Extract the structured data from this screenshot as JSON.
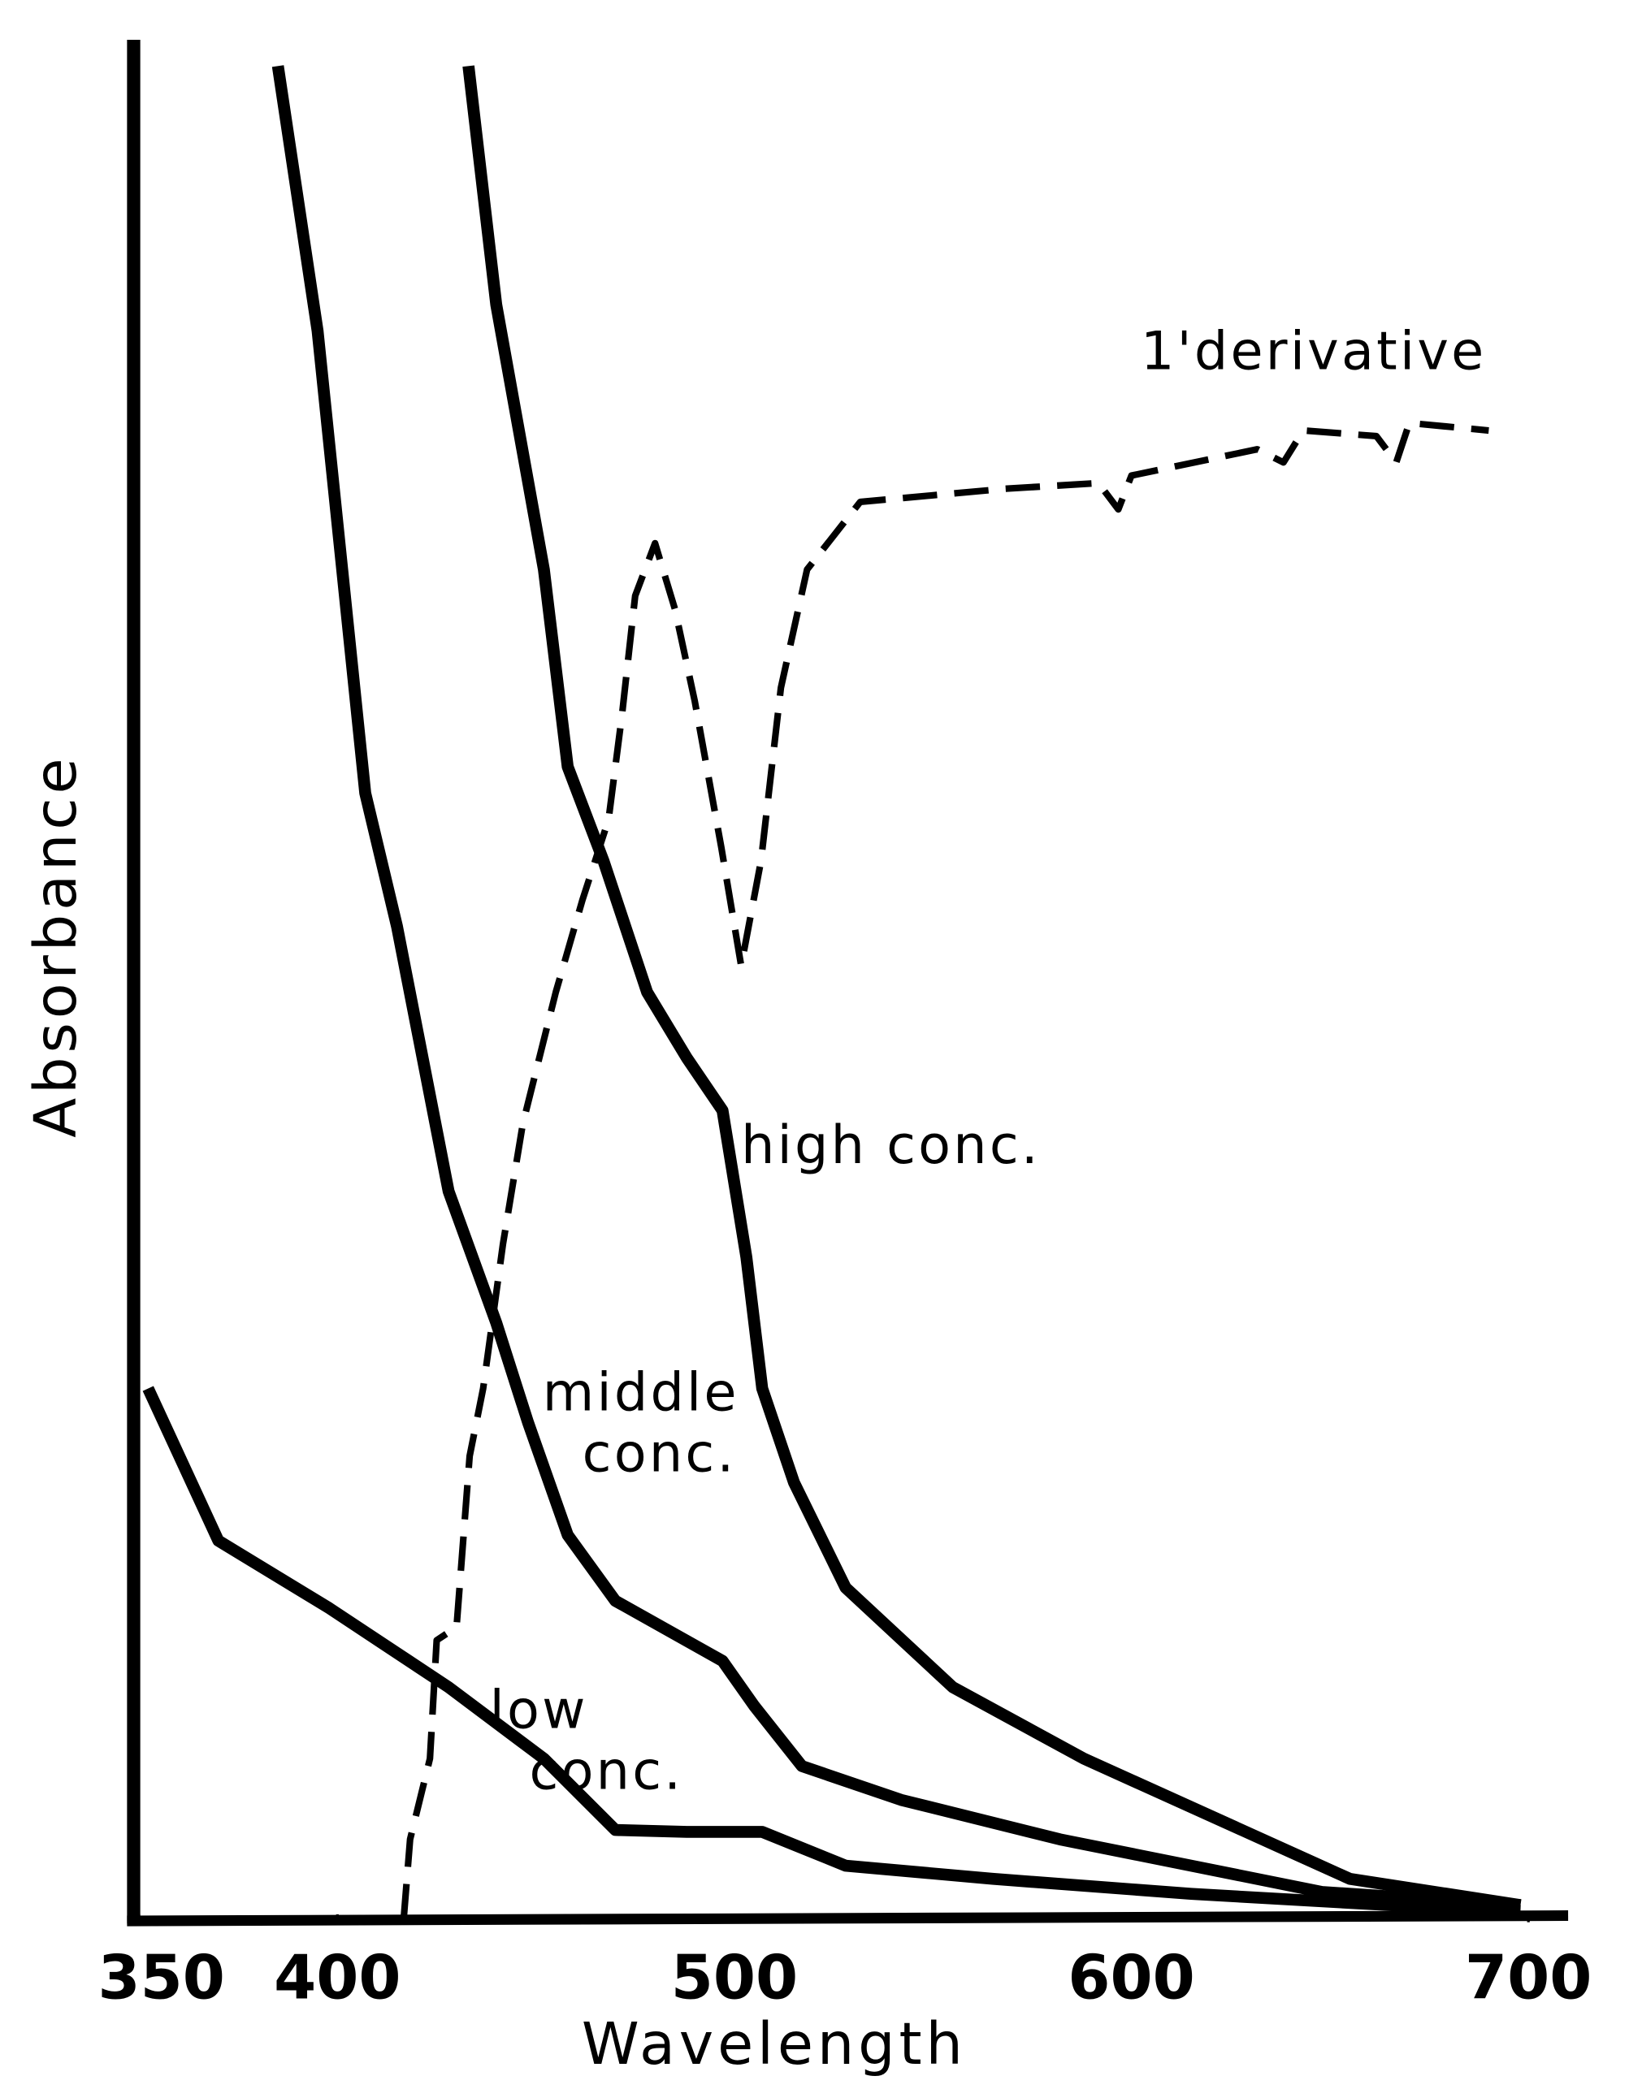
{
  "chart_data": {
    "type": "line",
    "x_label": "Wavelength",
    "y_label": "Absorbance",
    "xlim": [
      350,
      710
    ],
    "xticks": [
      350,
      400,
      500,
      600,
      700
    ],
    "ylim": [
      0,
      1
    ],
    "series": [
      {
        "name": "low conc.",
        "color": "#000000",
        "dashed": false,
        "x": [
          352.3,
          370,
          398,
          428,
          452,
          470,
          488,
          507,
          528,
          565,
          615,
          665,
          698
        ],
        "values": [
          0.282,
          0.201,
          0.165,
          0.123,
          0.085,
          0.047,
          0.046,
          0.046,
          0.028,
          0.021,
          0.013,
          0.007,
          0.004
        ]
      },
      {
        "name": "middle conc.",
        "color": "#000000",
        "dashed": false,
        "x": [
          385,
          395,
          407,
          415,
          428,
          440,
          448,
          458,
          470,
          497,
          505,
          517,
          542,
          582,
          648,
          698
        ],
        "values": [
          0.986,
          0.845,
          0.599,
          0.528,
          0.387,
          0.317,
          0.264,
          0.204,
          0.169,
          0.137,
          0.113,
          0.081,
          0.063,
          0.042,
          0.014,
          0.007
        ]
      },
      {
        "name": "high conc.",
        "color": "#000000",
        "dashed": false,
        "x": [
          433,
          440,
          452,
          458,
          467,
          478,
          488,
          497,
          503,
          507,
          515,
          528,
          555,
          588,
          655,
          698
        ],
        "values": [
          0.986,
          0.859,
          0.718,
          0.613,
          0.563,
          0.493,
          0.458,
          0.43,
          0.352,
          0.282,
          0.232,
          0.176,
          0.123,
          0.085,
          0.021,
          0.007
        ]
      },
      {
        "name": "1'derivative",
        "color": "#000000",
        "dashed": true,
        "x": [
          416.7,
          418.3,
          423.3,
          425,
          430,
          433.3,
          436.7,
          441.7,
          446.7,
          455,
          461.7,
          468.3,
          471.7,
          475,
          480,
          485,
          490,
          496.7,
          501.7,
          506.7,
          511.7,
          518.3,
          531.7,
          568.3,
          591.7,
          596.7,
          600,
          631.7,
          638.3,
          643.3,
          661.7,
          666.7,
          670,
          690
        ],
        "values": [
          0,
          0.042,
          0.085,
          0.148,
          0.155,
          0.246,
          0.282,
          0.359,
          0.423,
          0.493,
          0.542,
          0.585,
          0.641,
          0.704,
          0.732,
          0.697,
          0.648,
          0.57,
          0.507,
          0.563,
          0.655,
          0.718,
          0.754,
          0.761,
          0.764,
          0.75,
          0.768,
          0.782,
          0.775,
          0.792,
          0.789,
          0.775,
          0.796,
          0.792
        ]
      }
    ]
  }
}
